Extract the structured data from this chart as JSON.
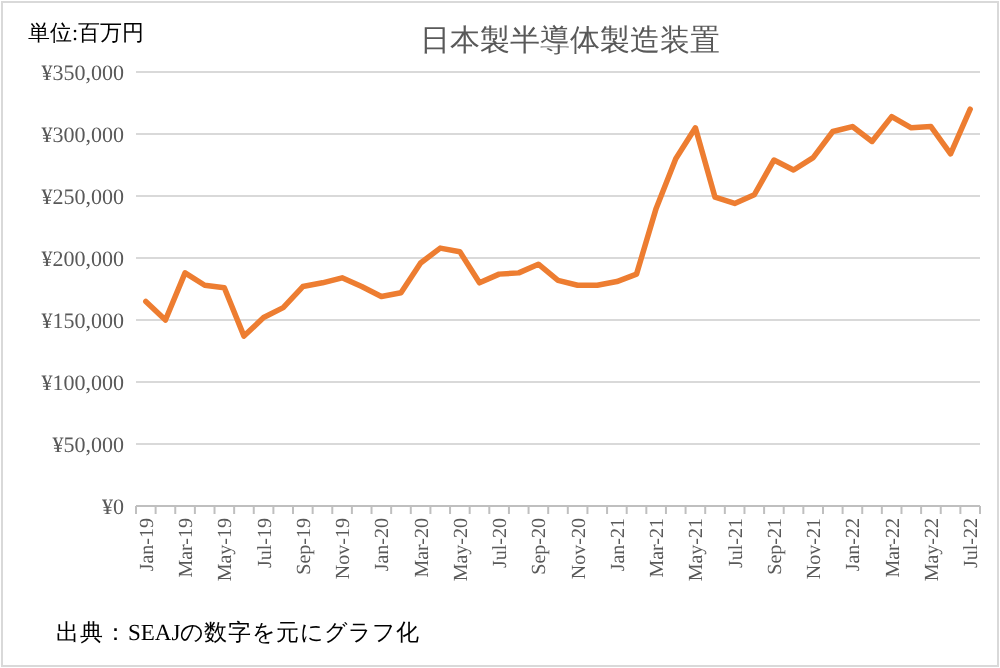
{
  "chart_data": {
    "type": "line",
    "title": "日本製半導体製造装置",
    "ylabel": "単位:百万円",
    "annotations": [
      "出典：SEAJの数字を元にグラフ化"
    ],
    "categories": [
      "Jan-19",
      null,
      "Mar-19",
      null,
      "May-19",
      null,
      "Jul-19",
      null,
      "Sep-19",
      null,
      "Nov-19",
      null,
      "Jan-20",
      null,
      "Mar-20",
      null,
      "May-20",
      null,
      "Jul-20",
      null,
      "Sep-20",
      null,
      "Nov-20",
      null,
      "Jan-21",
      null,
      "Mar-21",
      null,
      "May-21",
      null,
      "Jul-21",
      null,
      "Sep-21",
      null,
      "Nov-21",
      null,
      "Jan-22",
      null,
      "Mar-22",
      null,
      "May-22",
      null,
      "Jul-22"
    ],
    "series": [
      {
        "color": "#ed7d31",
        "values": [
          165000,
          150000,
          188000,
          178000,
          176000,
          137000,
          152000,
          160000,
          177000,
          180000,
          184000,
          177000,
          169000,
          172000,
          196000,
          208000,
          205000,
          180000,
          187000,
          188000,
          195000,
          182000,
          178000,
          178000,
          181000,
          187000,
          240000,
          280000,
          305000,
          249000,
          244000,
          251000,
          279000,
          271000,
          281000,
          302000,
          306000,
          294000,
          314000,
          305000,
          306000,
          284000,
          320000
        ]
      }
    ],
    "ylim": [
      0,
      350000
    ],
    "yticks": [
      {
        "value": 0,
        "label": "¥0"
      },
      {
        "value": 50000,
        "label": "¥50,000"
      },
      {
        "value": 100000,
        "label": "¥100,000"
      },
      {
        "value": 150000,
        "label": "¥150,000"
      },
      {
        "value": 200000,
        "label": "¥200,000"
      },
      {
        "value": 250000,
        "label": "¥250,000"
      },
      {
        "value": 300000,
        "label": "¥300,000"
      },
      {
        "value": 350000,
        "label": "¥350,000"
      }
    ],
    "grid": "y",
    "line_style": "solid"
  }
}
